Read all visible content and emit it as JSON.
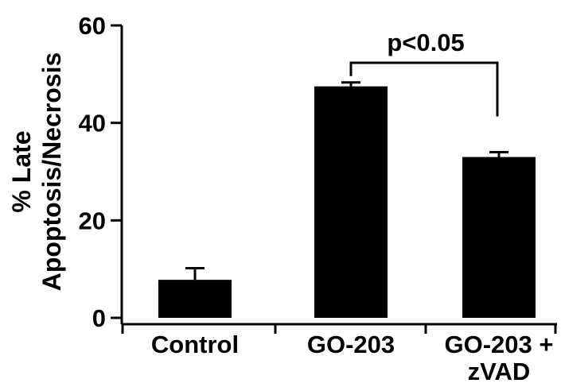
{
  "chart_data": {
    "type": "bar",
    "title": "",
    "xlabel": "",
    "ylabel_lines": [
      "% Late",
      "Apoptosis/Necrosis"
    ],
    "ylim": [
      0,
      60
    ],
    "yticks": [
      0,
      20,
      40,
      60
    ],
    "categories": [
      [
        "Control"
      ],
      [
        "GO-203"
      ],
      [
        "GO-203 +",
        "zVAD"
      ]
    ],
    "values": [
      7.8,
      47.5,
      33.0
    ],
    "errors": [
      2.4,
      0.8,
      1.0
    ],
    "bar_color": "#000000",
    "grid": false,
    "legend": "none",
    "annotation": {
      "text": "p<0.05",
      "from_category": 1,
      "to_category": 2
    }
  }
}
